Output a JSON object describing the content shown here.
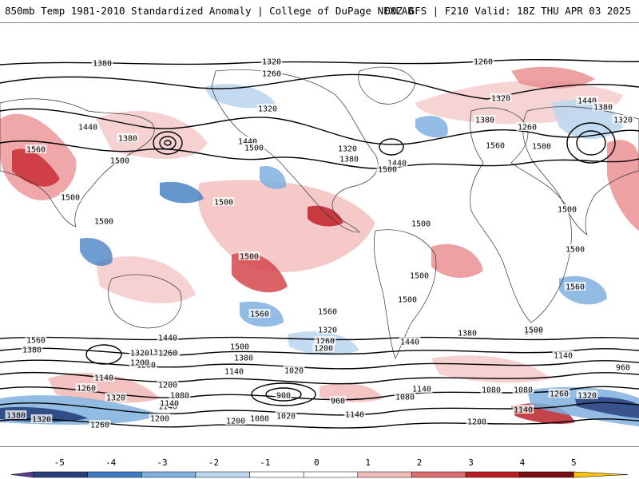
{
  "header": {
    "title_left": "850mb Temp 1981-2010 Standardized Anomaly | College of DuPage NEXLAB",
    "title_right": "00Z GFS | F210 Valid: 18Z THU APR 03 2025"
  },
  "colorbar": {
    "ticks": [
      "-5",
      "-4",
      "-3",
      "-2",
      "-1",
      "0",
      "1",
      "2",
      "3",
      "4",
      "5"
    ],
    "colors": [
      "#5b3a8c",
      "#27407c",
      "#3f7cc2",
      "#7fb0de",
      "#bcd7ef",
      "#ffffff",
      "#ffffff",
      "#f2bcbc",
      "#dc6e70",
      "#bb1d25",
      "#7a0d13",
      "#ffc400"
    ]
  },
  "contour_labels": [
    {
      "text": "1380"
    },
    {
      "text": "1320"
    },
    {
      "text": "1260"
    },
    {
      "text": "1260"
    },
    {
      "text": "1440"
    },
    {
      "text": "1380"
    },
    {
      "text": "1560"
    },
    {
      "text": "1500"
    },
    {
      "text": "1320"
    },
    {
      "text": "1440"
    },
    {
      "text": "1500"
    },
    {
      "text": "1320"
    },
    {
      "text": "1380"
    },
    {
      "text": "1440"
    },
    {
      "text": "1500"
    },
    {
      "text": "1380"
    },
    {
      "text": "1320"
    },
    {
      "text": "1260"
    },
    {
      "text": "1440"
    },
    {
      "text": "1380"
    },
    {
      "text": "1320"
    },
    {
      "text": "1500"
    },
    {
      "text": "1560"
    },
    {
      "text": "1500"
    },
    {
      "text": "1500"
    },
    {
      "text": "1500"
    },
    {
      "text": "1500"
    },
    {
      "text": "1500"
    },
    {
      "text": "1500"
    },
    {
      "text": "1500"
    },
    {
      "text": "1500"
    },
    {
      "text": "1560"
    },
    {
      "text": "1500"
    },
    {
      "text": "1560"
    },
    {
      "text": "1560"
    },
    {
      "text": "1560"
    },
    {
      "text": "1440"
    },
    {
      "text": "1380"
    },
    {
      "text": "1320"
    },
    {
      "text": "1260"
    },
    {
      "text": "1200"
    },
    {
      "text": "1140"
    },
    {
      "text": "1500"
    },
    {
      "text": "1380"
    },
    {
      "text": "1320"
    },
    {
      "text": "1260"
    },
    {
      "text": "1200"
    },
    {
      "text": "1440"
    },
    {
      "text": "1380"
    },
    {
      "text": "1260"
    },
    {
      "text": "1320"
    },
    {
      "text": "1200"
    },
    {
      "text": "1440"
    },
    {
      "text": "1500"
    },
    {
      "text": "1140"
    },
    {
      "text": "960"
    },
    {
      "text": "1140"
    },
    {
      "text": "1260"
    },
    {
      "text": "1200"
    },
    {
      "text": "1320"
    },
    {
      "text": "1140"
    },
    {
      "text": "1380"
    },
    {
      "text": "1320"
    },
    {
      "text": "1200"
    },
    {
      "text": "1140"
    },
    {
      "text": "1080"
    },
    {
      "text": "1020"
    },
    {
      "text": "900"
    },
    {
      "text": "960"
    },
    {
      "text": "1080"
    },
    {
      "text": "1140"
    },
    {
      "text": "1080"
    },
    {
      "text": "1080"
    },
    {
      "text": "1260"
    },
    {
      "text": "1320"
    },
    {
      "text": "1140"
    },
    {
      "text": "1200"
    },
    {
      "text": "1080"
    },
    {
      "text": "1020"
    },
    {
      "text": "1140"
    },
    {
      "text": "1200"
    },
    {
      "text": "1260"
    }
  ]
}
